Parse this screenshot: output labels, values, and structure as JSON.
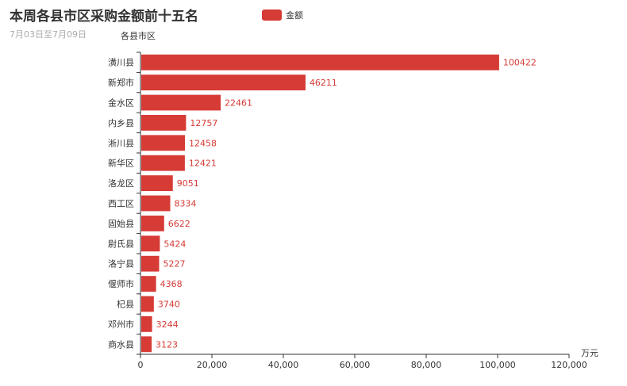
{
  "chart_data": {
    "type": "bar",
    "orientation": "horizontal",
    "title": "本周各县市区采购金额前十五名",
    "subtitle": "7月03日至7月09日",
    "ylabel": "各县市区",
    "xlabel": "万元",
    "legend": [
      "金额"
    ],
    "legend_position": "top-center",
    "xlim": [
      0,
      120000
    ],
    "xticks": [
      "0",
      "20,000",
      "40,000",
      "60,000",
      "80,000",
      "100,000",
      "120,000"
    ],
    "categories": [
      "潢川县",
      "新郑市",
      "金水区",
      "内乡县",
      "淅川县",
      "新华区",
      "洛龙区",
      "西工区",
      "固始县",
      "尉氏县",
      "洛宁县",
      "偃师市",
      "杞县",
      "邓州市",
      "商水县"
    ],
    "series": [
      {
        "name": "金额",
        "values": [
          100422,
          46211,
          22461,
          12757,
          12458,
          12421,
          9051,
          8334,
          6622,
          5424,
          5227,
          4368,
          3740,
          3244,
          3123
        ],
        "color": "#d63b36"
      }
    ]
  }
}
